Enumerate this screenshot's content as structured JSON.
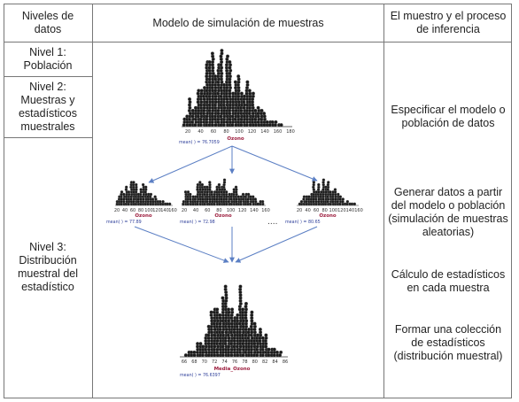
{
  "table": {
    "headers": {
      "levels": "Niveles de datos",
      "model": "Modelo de simulación de muestras",
      "process": "El muestro y el proceso de inferencia"
    },
    "levels": [
      "Nivel 1: Población",
      "Nivel 2: Muestras y estadísticos muestrales",
      "Nivel 3: Distribución muestral del estadístico"
    ],
    "process_steps": [
      "Especificar el modelo o población de datos",
      "Generar datos a partir del modelo o población (simulación de muestras aleatorias)",
      "Cálculo de estadísticos en cada muestra",
      "Formar una colección de estadísticos (distribución muestral)"
    ]
  },
  "figure": {
    "population": {
      "variable": "Ozono",
      "mean_label": "mean(  ) = 76.7059",
      "ticks": [
        "20",
        "40",
        "60",
        "80",
        "100",
        "120",
        "140",
        "160",
        "180"
      ]
    },
    "samples": [
      {
        "variable": "Ozono",
        "mean_label": "mean(  ) = 77.89",
        "ticks": [
          "20",
          "40",
          "60",
          "80",
          "100",
          "120",
          "140",
          "160"
        ]
      },
      {
        "variable": "Ozono",
        "mean_label": "mean(  ) = 72.98",
        "ticks": [
          "20",
          "40",
          "60",
          "80",
          "100",
          "120",
          "140",
          "160"
        ]
      },
      {
        "variable": "Ozono",
        "mean_label": "mean(  ) = 80.65",
        "ticks": [
          "20",
          "40",
          "60",
          "80",
          "100",
          "120",
          "140",
          "160"
        ]
      }
    ],
    "ellipsis": "....",
    "sampling": {
      "variable": "Media_Ozono",
      "mean_label": "mean(  ) = 76.6397",
      "ticks": [
        "66",
        "68",
        "70",
        "72",
        "74",
        "76",
        "78",
        "80",
        "82",
        "84",
        "86"
      ]
    },
    "colors": {
      "dots": "#1a1a1a",
      "arrows": "#5b7fc4",
      "variable": "#9c1c3c",
      "mean": "#2e3f9a"
    }
  }
}
